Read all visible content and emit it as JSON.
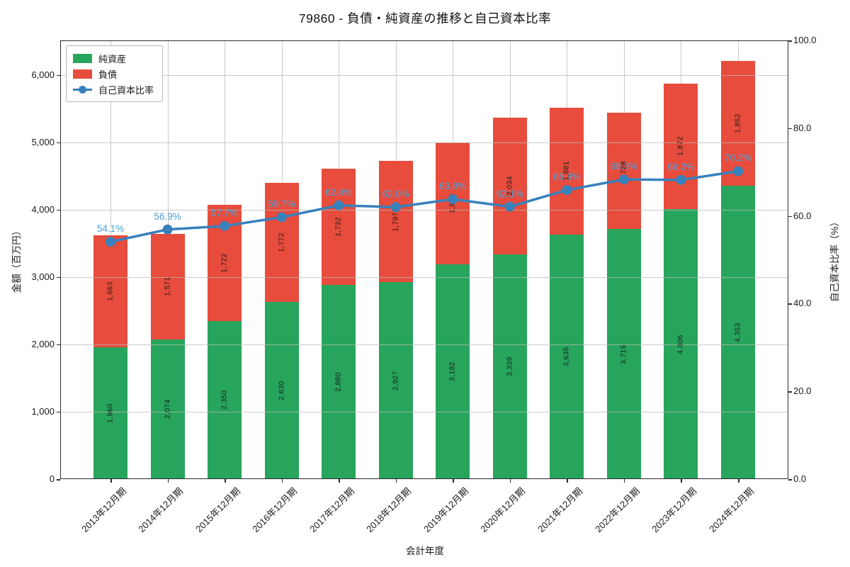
{
  "window": {
    "title": "79860 - 負債・純資産の推移と自己資本比率"
  },
  "chart_data": {
    "type": "bar",
    "subtype": "stacked-bar-with-line",
    "title": "79860 - 負債・純資産の推移と自己資本比率",
    "xlabel": "会計年度",
    "ylabel_left": "金額（百万円）",
    "ylabel_right": "自己資本比率（%）",
    "categories": [
      "2013年12月期",
      "2014年12月期",
      "2015年12月期",
      "2016年12月期",
      "2017年12月期",
      "2018年12月期",
      "2019年12月期",
      "2020年12月期",
      "2021年12月期",
      "2022年12月期",
      "2023年12月期",
      "2024年12月期"
    ],
    "series": [
      {
        "name": "純資産",
        "color": "#27a55c",
        "values": [
          1960,
          2074,
          2350,
          2630,
          2880,
          2927,
          3192,
          3339,
          3635,
          3715,
          4006,
          4353
        ],
        "labels": [
          "1,960",
          "2,074",
          "2,350",
          "2,630",
          "2,880",
          "2,927",
          "3,192",
          "3,339",
          "3,635",
          "3,715",
          "4,006",
          "4,353"
        ]
      },
      {
        "name": "負債",
        "color": "#e74c3c",
        "values": [
          1663,
          1571,
          1722,
          1772,
          1732,
          1797,
          1808,
          2034,
          1881,
          1728,
          1872,
          1852
        ],
        "labels": [
          "1,663",
          "1,571",
          "1,722",
          "1,772",
          "1,732",
          "1,797",
          "1,808",
          "2,034",
          "1,881",
          "1,728",
          "1,872",
          "1,852"
        ]
      }
    ],
    "line_series": {
      "name": "自己資本比率",
      "color": "#3781bd",
      "label_color": "#4ba1d9",
      "values": [
        54.1,
        56.9,
        57.7,
        59.7,
        62.4,
        62.0,
        63.8,
        62.1,
        65.9,
        68.3,
        68.2,
        70.2
      ],
      "labels": [
        "54.1%",
        "56.9%",
        "57.7%",
        "59.7%",
        "62.4%",
        "62.0%",
        "63.8%",
        "62.1%",
        "65.9%",
        "68.3%",
        "68.2%",
        "70.2%"
      ]
    },
    "ylim_left": [
      0,
      6515
    ],
    "ylim_right": [
      0,
      100
    ],
    "yticks_left": {
      "values": [
        0,
        1000,
        2000,
        3000,
        4000,
        5000,
        6000
      ],
      "labels": [
        "0",
        "1,000",
        "2,000",
        "3,000",
        "4,000",
        "5,000",
        "6,000"
      ]
    },
    "yticks_right": {
      "values": [
        0,
        20,
        40,
        60,
        80,
        100
      ],
      "labels": [
        "0.0",
        "20.0",
        "40.0",
        "60.0",
        "80.0",
        "100.0"
      ]
    },
    "grid": true,
    "grid_color": "#c9c9c9",
    "legend_position": "upper-left",
    "legend": [
      "純資産",
      "負債",
      "自己資本比率"
    ]
  }
}
